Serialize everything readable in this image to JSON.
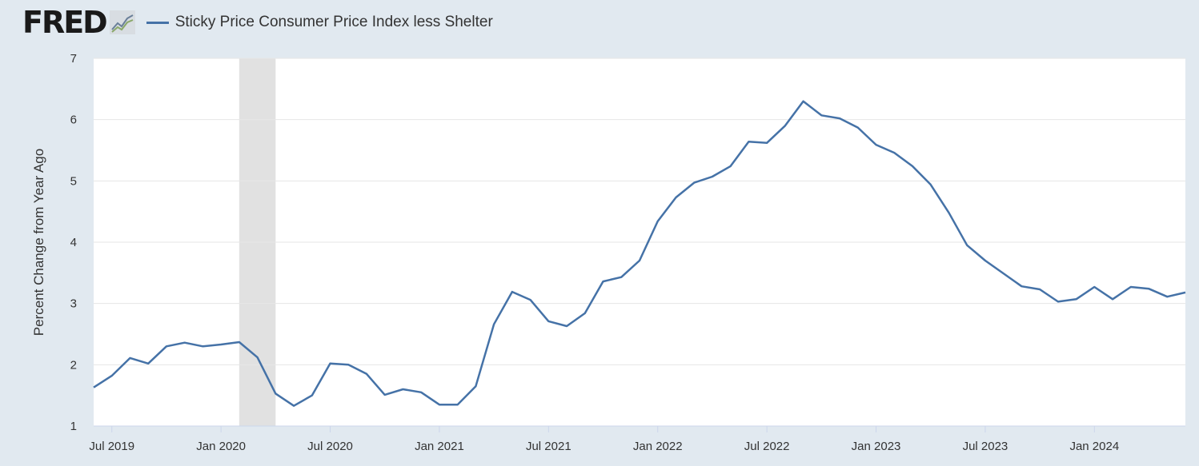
{
  "logo": "FRED",
  "colors": {
    "series": "#4572a7",
    "recession": "#e1e1e1",
    "background": "#e1e9f0",
    "grid": "#e6e6e6"
  },
  "chart_data": {
    "type": "line",
    "title": "",
    "ylabel": "Percent Change from Year Ago",
    "xlabel": "",
    "ylim": [
      1,
      7
    ],
    "yticks": [
      1,
      2,
      3,
      4,
      5,
      6,
      7
    ],
    "grid": true,
    "legend_placement": "top-left",
    "x_start": "2019-06",
    "xticks": [
      {
        "label": "Jul 2019",
        "index": 1
      },
      {
        "label": "Jan 2020",
        "index": 7
      },
      {
        "label": "Jul 2020",
        "index": 13
      },
      {
        "label": "Jan 2021",
        "index": 19
      },
      {
        "label": "Jul 2021",
        "index": 25
      },
      {
        "label": "Jan 2022",
        "index": 31
      },
      {
        "label": "Jul 2022",
        "index": 37
      },
      {
        "label": "Jan 2023",
        "index": 43
      },
      {
        "label": "Jul 2023",
        "index": 49
      },
      {
        "label": "Jan 2024",
        "index": 55
      }
    ],
    "recessions": [
      {
        "start_index": 8,
        "end_index": 10
      }
    ],
    "series": [
      {
        "name": "Sticky Price Consumer Price Index less Shelter",
        "values": [
          1.63,
          1.82,
          2.11,
          2.02,
          2.3,
          2.36,
          2.3,
          2.33,
          2.37,
          2.12,
          1.53,
          1.33,
          1.5,
          2.02,
          2.0,
          1.85,
          1.51,
          1.6,
          1.55,
          1.35,
          1.35,
          1.65,
          2.66,
          3.19,
          3.06,
          2.71,
          2.63,
          2.84,
          3.36,
          3.43,
          3.7,
          4.34,
          4.73,
          4.97,
          5.07,
          5.24,
          5.64,
          5.62,
          5.9,
          6.3,
          6.07,
          6.02,
          5.87,
          5.59,
          5.46,
          5.24,
          4.94,
          4.48,
          3.95,
          3.7,
          3.49,
          3.28,
          3.23,
          3.03,
          3.07,
          3.27,
          3.07,
          3.27,
          3.24,
          3.11,
          3.18
        ]
      }
    ]
  }
}
